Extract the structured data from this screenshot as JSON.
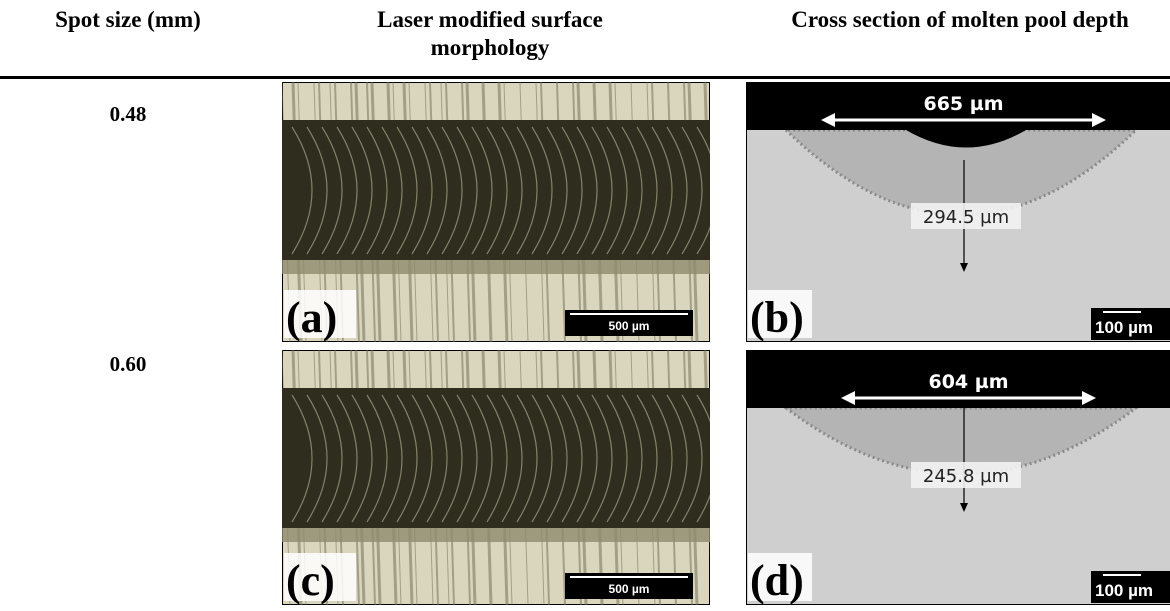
{
  "table": {
    "headers": [
      "Spot size (mm)",
      "Laser modified surface morphology",
      "Cross section of molten pool depth"
    ],
    "rows": [
      {
        "spot_size": "0.48",
        "morphology": {
          "label": "(a)",
          "scale_bar": "500 µm"
        },
        "cross_section": {
          "label": "(b)",
          "width": "665 µm",
          "depth": "294.5 µm",
          "scale_bar": "100 µm"
        }
      },
      {
        "spot_size": "0.60",
        "morphology": {
          "label": "(c)",
          "scale_bar": "500 µm"
        },
        "cross_section": {
          "label": "(d)",
          "width": "604 µm",
          "depth": "245.8 µm",
          "scale_bar": "100 µm"
        }
      }
    ]
  }
}
